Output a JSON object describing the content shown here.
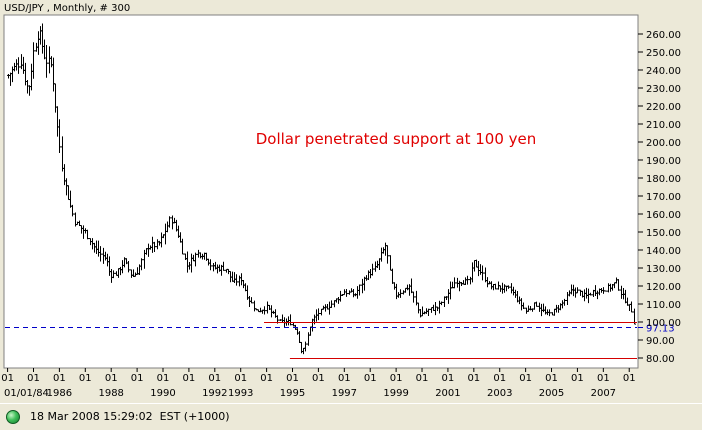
{
  "chart_data": {
    "type": "candlestick-ohlc",
    "title": "USD/JPY , Monthly, # 300",
    "annotation": "Dollar penetrated support at 100 yen",
    "y_axis": {
      "min": 75,
      "max": 270,
      "ticks": [
        80,
        90,
        100,
        110,
        120,
        130,
        140,
        150,
        160,
        170,
        180,
        190,
        200,
        210,
        220,
        230,
        240,
        250,
        260
      ],
      "tick_labels": [
        "80.00",
        "90.00",
        "100.00",
        "110.00",
        "120.00",
        "130.00",
        "140.00",
        "150.00",
        "160.00",
        "170.00",
        "180.00",
        "190.00",
        "200.00",
        "210.00",
        "220.00",
        "230.00",
        "240.00",
        "250.00",
        "260.00"
      ]
    },
    "x_axis": {
      "start": 1983.9,
      "end": 2008.3,
      "month_tick_years": [
        1984,
        1985,
        1986,
        1987,
        1988,
        1989,
        1990,
        1991,
        1992,
        1993,
        1994,
        1995,
        1996,
        1997,
        1998,
        1999,
        2000,
        2001,
        2002,
        2003,
        2004,
        2005,
        2006,
        2007,
        2008
      ],
      "month_tick_label": "01",
      "year_labels": [
        {
          "t": 1984,
          "label": "01/01/84"
        },
        {
          "t": 1986,
          "label": "1986"
        },
        {
          "t": 1988,
          "label": "1988"
        },
        {
          "t": 1990,
          "label": "1990"
        },
        {
          "t": 1992,
          "label": "1992"
        },
        {
          "t": 1993,
          "label": "1993"
        },
        {
          "t": 1995,
          "label": "1995"
        },
        {
          "t": 1997,
          "label": "1997"
        },
        {
          "t": 1999,
          "label": "1999"
        },
        {
          "t": 2001,
          "label": "2001"
        },
        {
          "t": 2003,
          "label": "2003"
        },
        {
          "t": 2005,
          "label": "2005"
        },
        {
          "t": 2007,
          "label": "2007"
        }
      ]
    },
    "series_close_points": [
      [
        1984.0,
        237
      ],
      [
        1984.5,
        245
      ],
      [
        1984.8,
        228
      ],
      [
        1985.0,
        250
      ],
      [
        1985.2,
        262
      ],
      [
        1985.45,
        246
      ],
      [
        1985.7,
        242
      ],
      [
        1985.9,
        210
      ],
      [
        1986.1,
        185
      ],
      [
        1986.4,
        165
      ],
      [
        1986.6,
        155
      ],
      [
        1987.0,
        150
      ],
      [
        1987.4,
        140
      ],
      [
        1987.8,
        135
      ],
      [
        1987.95,
        126
      ],
      [
        1988.2,
        127
      ],
      [
        1988.5,
        134
      ],
      [
        1988.8,
        125
      ],
      [
        1989.0,
        128
      ],
      [
        1989.4,
        142
      ],
      [
        1989.8,
        143
      ],
      [
        1990.0,
        148
      ],
      [
        1990.3,
        158
      ],
      [
        1990.6,
        148
      ],
      [
        1990.9,
        131
      ],
      [
        1991.3,
        138
      ],
      [
        1991.6,
        138
      ],
      [
        1991.9,
        130
      ],
      [
        1992.4,
        130
      ],
      [
        1992.7,
        122
      ],
      [
        1993.0,
        124
      ],
      [
        1993.3,
        113
      ],
      [
        1993.6,
        106
      ],
      [
        1994.0,
        108
      ],
      [
        1994.5,
        100
      ],
      [
        1994.9,
        100
      ],
      [
        1995.2,
        94
      ],
      [
        1995.3,
        84
      ],
      [
        1995.5,
        87
      ],
      [
        1995.7,
        100
      ],
      [
        1996.0,
        105
      ],
      [
        1996.5,
        110
      ],
      [
        1997.0,
        117
      ],
      [
        1997.4,
        115
      ],
      [
        1997.8,
        125
      ],
      [
        1998.2,
        130
      ],
      [
        1998.6,
        143
      ],
      [
        1998.8,
        122
      ],
      [
        1999.0,
        115
      ],
      [
        1999.5,
        120
      ],
      [
        1999.9,
        104
      ],
      [
        2000.3,
        107
      ],
      [
        2000.6,
        108
      ],
      [
        2001.0,
        116
      ],
      [
        2001.3,
        123
      ],
      [
        2001.8,
        122
      ],
      [
        2002.0,
        133
      ],
      [
        2002.3,
        127
      ],
      [
        2002.6,
        120
      ],
      [
        2003.0,
        119
      ],
      [
        2003.4,
        118
      ],
      [
        2003.8,
        110
      ],
      [
        2004.0,
        106
      ],
      [
        2004.4,
        110
      ],
      [
        2004.8,
        104
      ],
      [
        2005.0,
        105
      ],
      [
        2005.4,
        110
      ],
      [
        2005.8,
        118
      ],
      [
        2006.0,
        117
      ],
      [
        2006.3,
        114
      ],
      [
        2006.6,
        117
      ],
      [
        2006.9,
        118
      ],
      [
        2007.2,
        119
      ],
      [
        2007.5,
        122
      ],
      [
        2007.7,
        115
      ],
      [
        2007.9,
        111
      ],
      [
        2008.1,
        106
      ],
      [
        2008.2,
        97
      ]
    ],
    "horizontal_lines": [
      {
        "name": "support-line",
        "value": 100,
        "color": "#d40000",
        "style": "solid",
        "t_start": 1993.9,
        "t_end": 2008.3
      },
      {
        "name": "low-line",
        "value": 80,
        "color": "#d40000",
        "style": "solid",
        "t_start": 1994.9,
        "t_end": 2008.3
      },
      {
        "name": "last-price-line",
        "value": 97.13,
        "color": "#0000c8",
        "style": "dashed",
        "t_start": 1983.9,
        "t_end": 2008.3
      }
    ],
    "last_price_label": "97.13",
    "colors": {
      "bars": "#000000",
      "annotation": "#e00000",
      "support": "#d40000",
      "last_price": "#0000c8"
    },
    "grid": false
  },
  "status": {
    "timestamp_text": "18 Mar 2008 15:29:02  EST (+1000)",
    "indicator": "connected-led"
  }
}
